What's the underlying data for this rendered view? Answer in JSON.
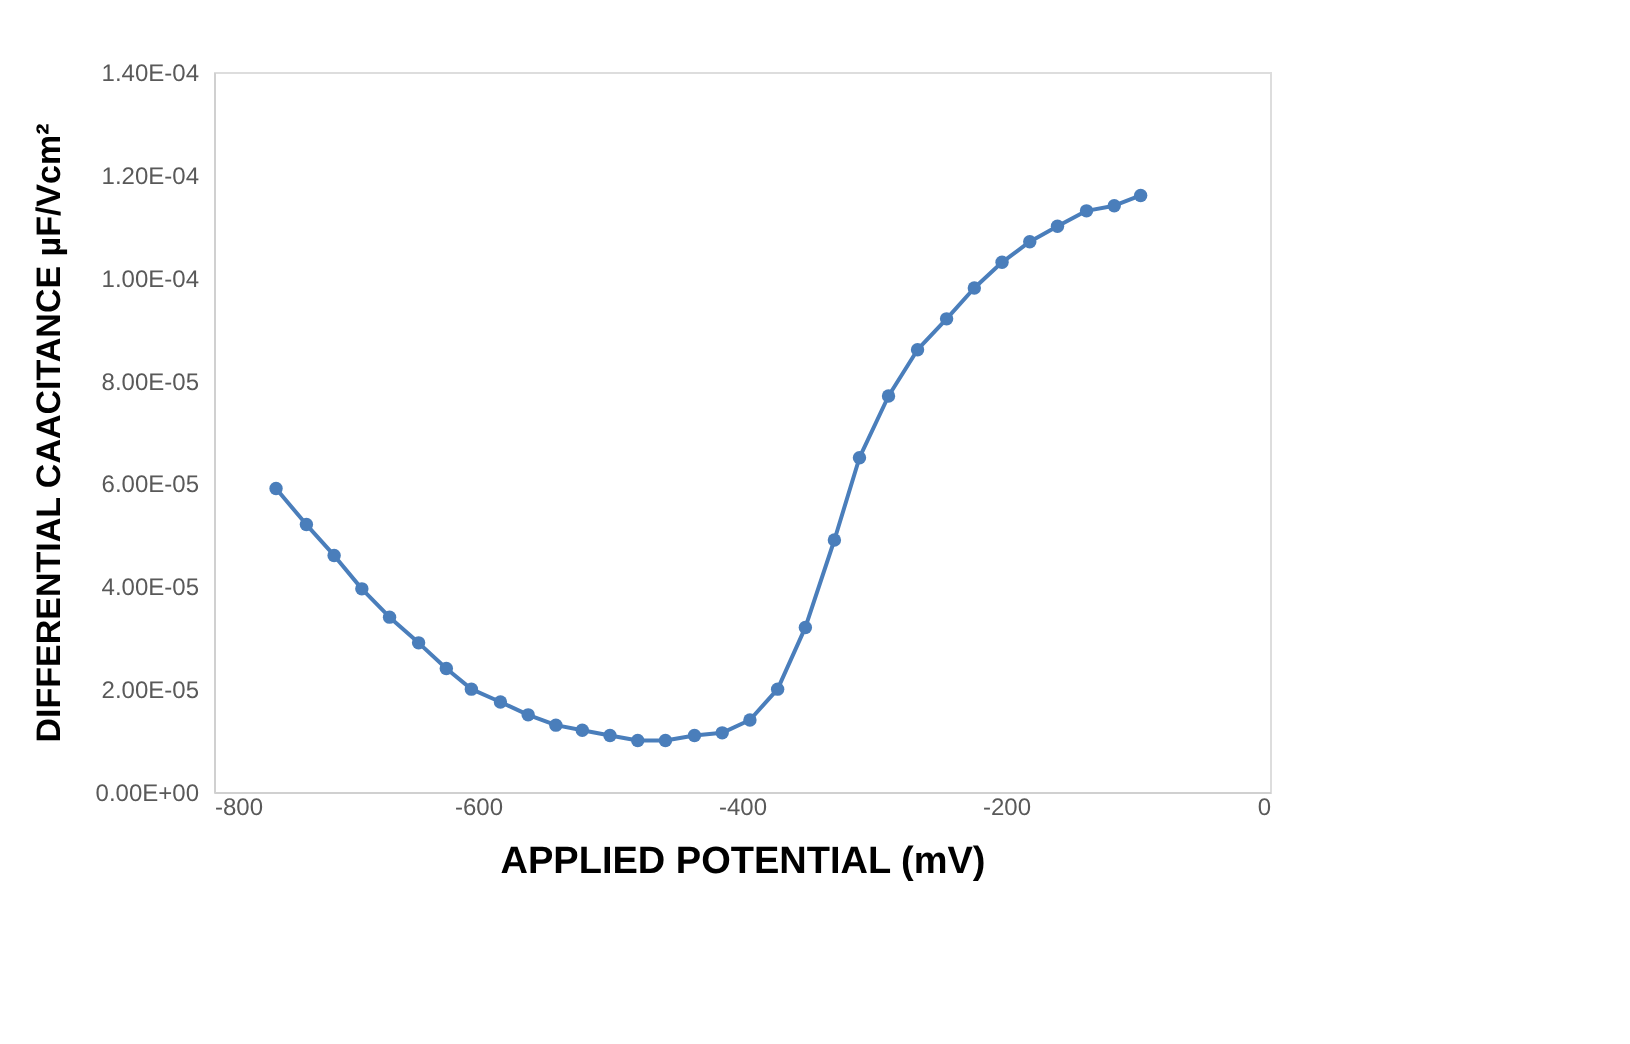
{
  "chart_data": {
    "type": "line",
    "xlabel": "APPLIED POTENTIAL (mV)",
    "ylabel": "DIFFERENTIAL CAACITANCE µF/Vcm²",
    "x": [
      -753,
      -730,
      -709,
      -688,
      -667,
      -645,
      -624,
      -605,
      -583,
      -562,
      -541,
      -521,
      -500,
      -479,
      -458,
      -436,
      -415,
      -394,
      -373,
      -352,
      -330,
      -311,
      -289,
      -267,
      -245,
      -224,
      -203,
      -182,
      -161,
      -139,
      -118,
      -98
    ],
    "series": [
      {
        "color": "#4a7ebb",
        "values": [
          5.9e-05,
          5.2e-05,
          4.6e-05,
          3.95e-05,
          3.4e-05,
          2.9e-05,
          2.4e-05,
          2e-05,
          1.75e-05,
          1.5e-05,
          1.3e-05,
          1.2e-05,
          1.1e-05,
          1e-05,
          1e-05,
          1.1e-05,
          1.15e-05,
          1.4e-05,
          2e-05,
          3.2e-05,
          4.9e-05,
          6.5e-05,
          7.7e-05,
          8.6e-05,
          9.2e-05,
          9.8e-05,
          0.000103,
          0.000107,
          0.00011,
          0.000113,
          0.000114,
          0.000116
        ]
      }
    ],
    "xlim": [
      -800,
      0
    ],
    "xticks": [
      -800,
      -600,
      -400,
      -200,
      0
    ],
    "ylim": [
      0,
      0.00014
    ],
    "yticks": [
      {
        "value": 0,
        "label": "0.00E+00"
      },
      {
        "value": 2e-05,
        "label": "2.00E-05"
      },
      {
        "value": 4e-05,
        "label": "4.00E-05"
      },
      {
        "value": 6e-05,
        "label": "6.00E-05"
      },
      {
        "value": 8e-05,
        "label": "8.00E-05"
      },
      {
        "value": 0.0001,
        "label": "1.00E-04"
      },
      {
        "value": 0.00012,
        "label": "1.20E-04"
      },
      {
        "value": 0.00014,
        "label": "1.40E-04"
      }
    ],
    "grid": false,
    "marker": "circle",
    "line_style": "solid"
  }
}
